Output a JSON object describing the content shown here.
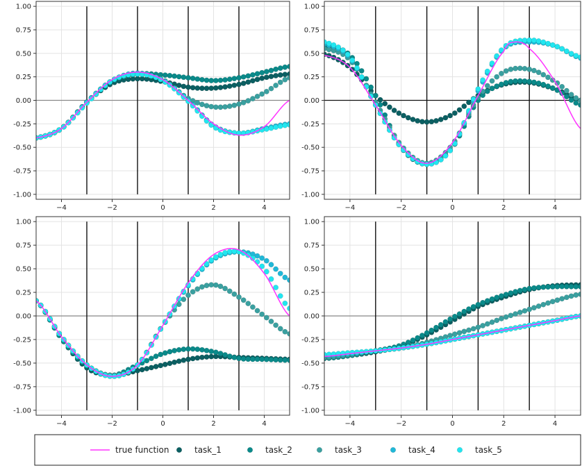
{
  "legend": {
    "placement": "bottom",
    "entries": [
      {
        "label": "true function",
        "kind": "line",
        "color": "#ff33ff"
      },
      {
        "label": "task_1",
        "kind": "marker",
        "color": "#0b5f62"
      },
      {
        "label": "task_2",
        "kind": "marker",
        "color": "#0a8a8a"
      },
      {
        "label": "task_3",
        "kind": "marker",
        "color": "#3aa0a0"
      },
      {
        "label": "task_4",
        "kind": "marker",
        "color": "#20b8d8"
      },
      {
        "label": "task_5",
        "kind": "marker",
        "color": "#22e6f0"
      }
    ]
  },
  "chart_data": [
    {
      "type": "scatter",
      "xlim": [
        -5,
        5
      ],
      "ylim": [
        -1,
        1
      ],
      "xticks": [
        -4,
        -2,
        0,
        2,
        4
      ],
      "yticks": [
        -1.0,
        -0.75,
        -0.5,
        -0.25,
        0.0,
        0.25,
        0.5,
        0.75,
        1.0
      ],
      "grid": true,
      "vertical_lines_x": [
        -3,
        -1,
        1,
        3
      ],
      "true_function": {
        "x": [
          -5,
          -4,
          -3,
          -2,
          -1,
          0,
          1,
          2,
          3,
          4,
          5
        ],
        "y": [
          -0.4,
          -0.3,
          -0.02,
          0.22,
          0.3,
          0.22,
          0.0,
          -0.25,
          -0.37,
          -0.28,
          0.0
        ]
      },
      "series": [
        {
          "name": "task_1",
          "x": [
            -5,
            -4,
            -3,
            -2,
            -1,
            0,
            1,
            2,
            3,
            4,
            5
          ],
          "y": [
            -0.4,
            -0.3,
            -0.02,
            0.18,
            0.23,
            0.2,
            0.14,
            0.13,
            0.17,
            0.24,
            0.28
          ]
        },
        {
          "name": "task_2",
          "x": [
            -5,
            -4,
            -3,
            -2,
            -1,
            0,
            1,
            2,
            3,
            4,
            5
          ],
          "y": [
            -0.4,
            -0.3,
            -0.02,
            0.2,
            0.28,
            0.27,
            0.24,
            0.21,
            0.24,
            0.3,
            0.36
          ]
        },
        {
          "name": "task_3",
          "x": [
            -5,
            -4,
            -3,
            -2,
            -1,
            0,
            1,
            2,
            3,
            4,
            5
          ],
          "y": [
            -0.4,
            -0.3,
            -0.02,
            0.21,
            0.28,
            0.22,
            0.02,
            -0.07,
            -0.04,
            0.08,
            0.24
          ]
        },
        {
          "name": "task_4",
          "x": [
            -5,
            -4,
            -3,
            -2,
            -1,
            0,
            1,
            2,
            3,
            4,
            5
          ],
          "y": [
            -0.4,
            -0.3,
            -0.02,
            0.21,
            0.29,
            0.21,
            0.0,
            -0.27,
            -0.35,
            -0.3,
            -0.25
          ]
        },
        {
          "name": "task_5",
          "x": [
            -5,
            -4,
            -3,
            -2,
            -1,
            0,
            1,
            2,
            3,
            4,
            5
          ],
          "y": [
            -0.4,
            -0.3,
            -0.03,
            0.21,
            0.28,
            0.21,
            -0.01,
            -0.28,
            -0.35,
            -0.31,
            -0.26
          ]
        }
      ]
    },
    {
      "type": "scatter",
      "xlim": [
        -5,
        5
      ],
      "ylim": [
        -1,
        1
      ],
      "xticks": [
        -4,
        -2,
        0,
        2,
        4
      ],
      "yticks": [
        -1.0,
        -0.75,
        -0.5,
        -0.25,
        0.0,
        0.25,
        0.5,
        0.75,
        1.0
      ],
      "grid": true,
      "vertical_lines_x": [
        -3,
        -1,
        1,
        3
      ],
      "true_function": {
        "x": [
          -5,
          -4,
          -3,
          -2,
          -1,
          0,
          1,
          2,
          2.4,
          3,
          4,
          5
        ],
        "y": [
          0.48,
          0.35,
          -0.05,
          -0.48,
          -0.67,
          -0.45,
          0.05,
          0.52,
          0.62,
          0.55,
          0.2,
          -0.3
        ]
      },
      "series": [
        {
          "name": "task_1",
          "x": [
            -5,
            -4,
            -3,
            -2,
            -1,
            0,
            1,
            2,
            3,
            4,
            5
          ],
          "y": [
            0.49,
            0.35,
            0.05,
            -0.15,
            -0.23,
            -0.15,
            0.05,
            0.17,
            0.19,
            0.12,
            0.0
          ]
        },
        {
          "name": "task_2",
          "x": [
            -5,
            -4,
            -3,
            -2,
            -1,
            0,
            1,
            2,
            3,
            4,
            5
          ],
          "y": [
            0.58,
            0.48,
            0.05,
            -0.5,
            -0.68,
            -0.5,
            0.0,
            0.18,
            0.2,
            0.12,
            -0.05
          ]
        },
        {
          "name": "task_3",
          "x": [
            -5,
            -4,
            -3,
            -2,
            -1,
            0,
            1,
            2,
            3,
            4,
            5
          ],
          "y": [
            0.55,
            0.43,
            -0.02,
            -0.48,
            -0.67,
            -0.47,
            0.03,
            0.3,
            0.33,
            0.2,
            0.0
          ]
        },
        {
          "name": "task_4",
          "x": [
            -5,
            -4,
            -3,
            -2,
            -1,
            0,
            1,
            2,
            3,
            4,
            5
          ],
          "y": [
            0.6,
            0.45,
            -0.05,
            -0.5,
            -0.68,
            -0.5,
            0.1,
            0.55,
            0.62,
            0.58,
            0.45
          ]
        },
        {
          "name": "task_5",
          "x": [
            -5,
            -4,
            -3,
            -2,
            -1,
            0,
            1,
            2,
            3,
            4,
            5
          ],
          "y": [
            0.62,
            0.46,
            -0.05,
            -0.5,
            -0.68,
            -0.5,
            0.12,
            0.56,
            0.64,
            0.58,
            0.46
          ]
        }
      ]
    },
    {
      "type": "scatter",
      "xlim": [
        -5,
        5
      ],
      "ylim": [
        -1,
        1
      ],
      "xticks": [
        -4,
        -2,
        0,
        2,
        4
      ],
      "yticks": [
        -1.0,
        -0.75,
        -0.5,
        -0.25,
        0.0,
        0.25,
        0.5,
        0.75,
        1.0
      ],
      "grid": true,
      "vertical_lines_x": [
        -3,
        -1,
        1,
        3
      ],
      "true_function": {
        "x": [
          -5,
          -4,
          -3,
          -2,
          -1,
          0,
          1,
          2,
          3,
          4,
          5
        ],
        "y": [
          0.16,
          -0.22,
          -0.52,
          -0.64,
          -0.52,
          -0.1,
          0.35,
          0.65,
          0.7,
          0.45,
          0.0
        ]
      },
      "series": [
        {
          "name": "task_1",
          "x": [
            -5,
            -4,
            -3,
            -2,
            -1,
            0,
            1,
            2,
            3,
            4,
            5
          ],
          "y": [
            0.16,
            -0.24,
            -0.55,
            -0.63,
            -0.58,
            -0.52,
            -0.46,
            -0.43,
            -0.44,
            -0.45,
            -0.46
          ]
        },
        {
          "name": "task_2",
          "x": [
            -5,
            -4,
            -3,
            -2,
            -1,
            0,
            1,
            2,
            3,
            4,
            5
          ],
          "y": [
            0.16,
            -0.24,
            -0.53,
            -0.63,
            -0.52,
            -0.4,
            -0.35,
            -0.38,
            -0.45,
            -0.46,
            -0.47
          ]
        },
        {
          "name": "task_3",
          "x": [
            -5,
            -4,
            -3,
            -2,
            -1,
            0,
            1,
            2,
            3,
            4,
            5
          ],
          "y": [
            0.16,
            -0.22,
            -0.52,
            -0.63,
            -0.52,
            -0.1,
            0.22,
            0.33,
            0.2,
            0.0,
            -0.19
          ]
        },
        {
          "name": "task_4",
          "x": [
            -5,
            -4,
            -3,
            -2,
            -1,
            0,
            1,
            2,
            3,
            4,
            5
          ],
          "y": [
            0.16,
            -0.22,
            -0.52,
            -0.64,
            -0.52,
            -0.1,
            0.32,
            0.6,
            0.68,
            0.6,
            0.38
          ]
        },
        {
          "name": "task_5",
          "x": [
            -5,
            -4,
            -3,
            -2,
            -1,
            0,
            1,
            2,
            3,
            4,
            5
          ],
          "y": [
            0.16,
            -0.22,
            -0.52,
            -0.64,
            -0.52,
            -0.1,
            0.33,
            0.61,
            0.68,
            0.5,
            0.08
          ]
        }
      ]
    },
    {
      "type": "scatter",
      "xlim": [
        -5,
        5
      ],
      "ylim": [
        -1,
        1
      ],
      "xticks": [
        -4,
        -2,
        0,
        2,
        4
      ],
      "yticks": [
        -1.0,
        -0.75,
        -0.5,
        -0.25,
        0.0,
        0.25,
        0.5,
        0.75,
        1.0
      ],
      "grid": true,
      "vertical_lines_x": [
        -3,
        -1,
        1,
        3
      ],
      "true_function": {
        "x": [
          -5,
          -4,
          -3,
          -2,
          -1,
          0,
          1,
          2,
          3,
          4,
          5
        ],
        "y": [
          -0.43,
          -0.4,
          -0.37,
          -0.34,
          -0.3,
          -0.25,
          -0.2,
          -0.15,
          -0.1,
          -0.05,
          0.0
        ]
      },
      "series": [
        {
          "name": "task_1",
          "x": [
            -5,
            -4,
            -3,
            -2,
            -1,
            0,
            1,
            2,
            3,
            4,
            5
          ],
          "y": [
            -0.45,
            -0.42,
            -0.38,
            -0.32,
            -0.2,
            -0.05,
            0.1,
            0.2,
            0.28,
            0.32,
            0.33
          ]
        },
        {
          "name": "task_2",
          "x": [
            -5,
            -4,
            -3,
            -2,
            -1,
            0,
            1,
            2,
            3,
            4,
            5
          ],
          "y": [
            -0.45,
            -0.42,
            -0.37,
            -0.31,
            -0.18,
            -0.02,
            0.12,
            0.22,
            0.29,
            0.31,
            0.31
          ]
        },
        {
          "name": "task_3",
          "x": [
            -5,
            -4,
            -3,
            -2,
            -1,
            0,
            1,
            2,
            3,
            4,
            5
          ],
          "y": [
            -0.44,
            -0.41,
            -0.37,
            -0.34,
            -0.28,
            -0.2,
            -0.12,
            -0.02,
            0.07,
            0.16,
            0.23
          ]
        },
        {
          "name": "task_4",
          "x": [
            -5,
            -4,
            -3,
            -2,
            -1,
            0,
            1,
            2,
            3,
            4,
            5
          ],
          "y": [
            -0.42,
            -0.4,
            -0.37,
            -0.34,
            -0.3,
            -0.25,
            -0.2,
            -0.15,
            -0.1,
            -0.05,
            0.0
          ]
        },
        {
          "name": "task_5",
          "x": [
            -5,
            -4,
            -3,
            -2,
            -1,
            0,
            1,
            2,
            3,
            4,
            5
          ],
          "y": [
            -0.41,
            -0.39,
            -0.37,
            -0.34,
            -0.3,
            -0.25,
            -0.2,
            -0.15,
            -0.1,
            -0.05,
            0.0
          ]
        }
      ]
    }
  ]
}
